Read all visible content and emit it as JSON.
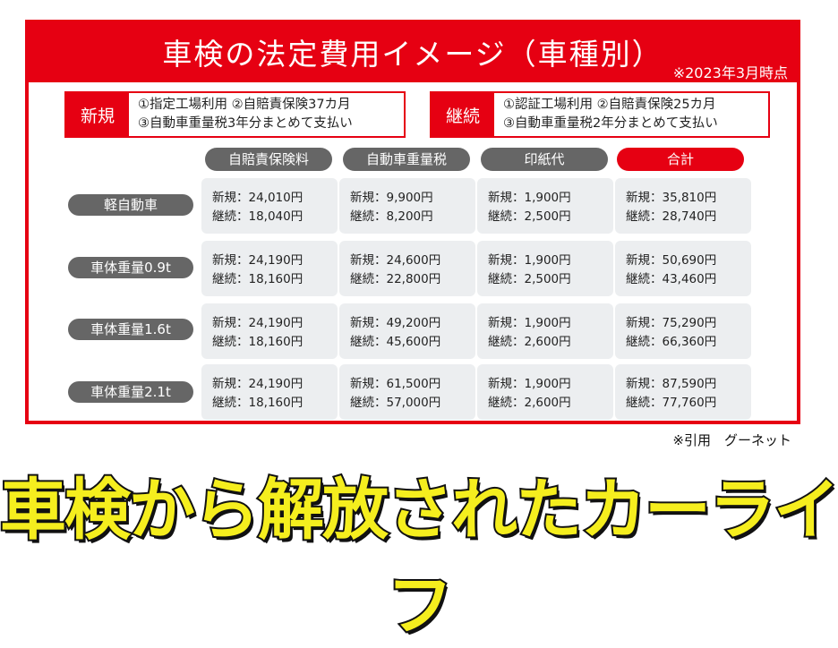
{
  "banner": {
    "title": "車検の法定費用イメージ（車種別）",
    "note": "※2023年3月時点"
  },
  "conditions": {
    "new": {
      "tag": "新規",
      "line1": "①指定工場利用 ②自賠責保険37カ月",
      "line2": "③自動車重量税3年分まとめて支払い"
    },
    "cont": {
      "tag": "継続",
      "line1": "①認証工場利用 ②自賠責保険25カ月",
      "line2": "③自動車重量税2年分まとめて支払い"
    }
  },
  "columns": [
    "自賠責保険料",
    "自動車重量税",
    "印紙代",
    "合計"
  ],
  "rows": [
    {
      "label": "軽自動車",
      "cells": [
        {
          "new": "新規：24,010円",
          "cont": "継続：18,040円"
        },
        {
          "new": "新規：9,900円",
          "cont": "継続：8,200円"
        },
        {
          "new": "新規：1,900円",
          "cont": "継続：2,500円"
        },
        {
          "new": "新規：35,810円",
          "cont": "継続：28,740円"
        }
      ]
    },
    {
      "label": "車体重量0.9t",
      "cells": [
        {
          "new": "新規：24,190円",
          "cont": "継続：18,160円"
        },
        {
          "new": "新規：24,600円",
          "cont": "継続：22,800円"
        },
        {
          "new": "新規：1,900円",
          "cont": "継続：2,500円"
        },
        {
          "new": "新規：50,690円",
          "cont": "継続：43,460円"
        }
      ]
    },
    {
      "label": "車体重量1.6t",
      "cells": [
        {
          "new": "新規：24,190円",
          "cont": "継続：18,160円"
        },
        {
          "new": "新規：49,200円",
          "cont": "継続：45,600円"
        },
        {
          "new": "新規：1,900円",
          "cont": "継続：2,600円"
        },
        {
          "new": "新規：75,290円",
          "cont": "継続：66,360円"
        }
      ]
    },
    {
      "label": "車体重量2.1t",
      "cells": [
        {
          "new": "新規：24,190円",
          "cont": "継続：18,160円"
        },
        {
          "new": "新規：61,500円",
          "cont": "継続：57,000円"
        },
        {
          "new": "新規：1,900円",
          "cont": "継続：2,600円"
        },
        {
          "new": "新規：87,590円",
          "cont": "継続：77,760円"
        }
      ]
    }
  ],
  "source": "※引用　グーネット",
  "slogan": "車検から解放されたカーライフ"
}
